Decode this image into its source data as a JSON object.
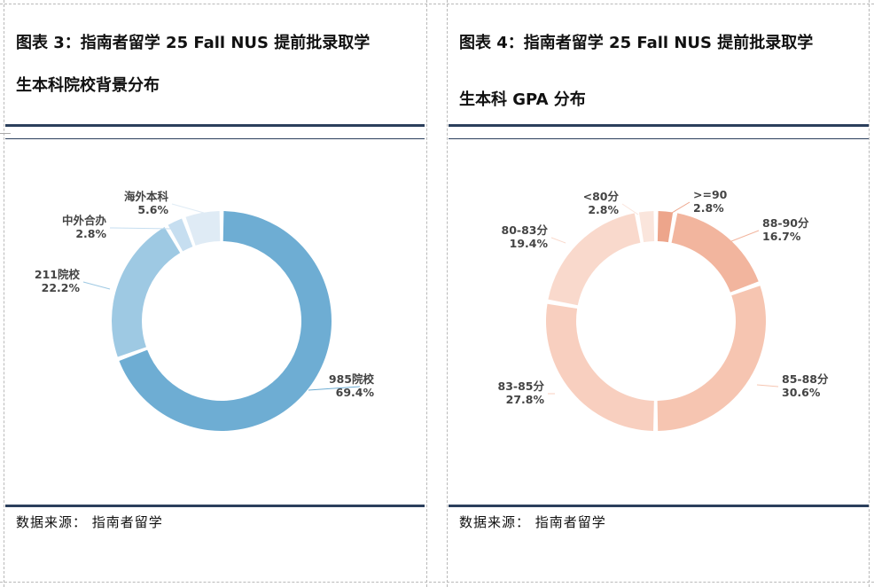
{
  "left": {
    "title_line1": "图表 3：指南者留学 25 Fall NUS 提前批录取学",
    "title_line2": "生本科院校背景分布",
    "source": "数据来源：  指南者留学"
  },
  "right": {
    "title_line1": "图表 4：指南者留学 25 Fall NUS 提前批录取学",
    "title_line2": "生本科 GPA 分布",
    "source": "数据来源：  指南者留学"
  },
  "chart_data": [
    {
      "type": "donut",
      "slices": [
        {
          "name": "985院校",
          "value": 69.4,
          "label": "69.4%",
          "color": "#6eadd3"
        },
        {
          "name": "211院校",
          "value": 22.2,
          "label": "22.2%",
          "color": "#9ec9e3"
        },
        {
          "name": "中外合办",
          "value": 2.8,
          "label": "2.8%",
          "color": "#c6def0"
        },
        {
          "name": "海外本科",
          "value": 5.6,
          "label": "5.6%",
          "color": "#dfebf5"
        }
      ]
    },
    {
      "type": "donut",
      "slices": [
        {
          "name": ">=90",
          "value": 2.8,
          "label": "2.8%",
          "color": "#eda58b"
        },
        {
          "name": "88-90分",
          "value": 16.7,
          "label": "16.7%",
          "color": "#f2b59e"
        },
        {
          "name": "85-88分",
          "value": 30.6,
          "label": "30.6%",
          "color": "#f6c5b1"
        },
        {
          "name": "83-85分",
          "value": 27.8,
          "label": "27.8%",
          "color": "#f8cfbf"
        },
        {
          "name": "80-83分",
          "value": 19.4,
          "label": "19.4%",
          "color": "#f9d9cc"
        },
        {
          "name": "<80分",
          "value": 2.8,
          "label": "2.8%",
          "color": "#fae5dc"
        }
      ]
    }
  ]
}
